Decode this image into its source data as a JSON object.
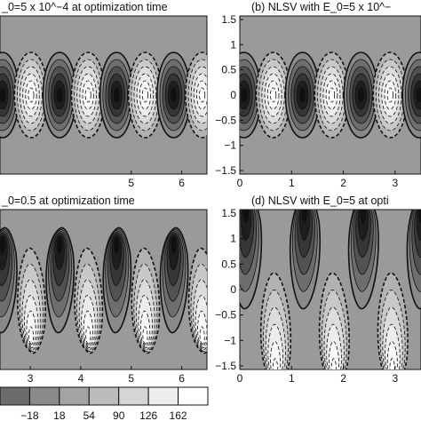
{
  "chart_data": [
    {
      "type": "heatmap",
      "panel": "a",
      "title": "_0=5 x 10^−4 at optimization time",
      "x_ticks": [
        "5",
        "6"
      ],
      "x_tick_values": [
        5,
        6
      ],
      "y_ticks": [],
      "xlim": [
        2.4,
        6.5
      ],
      "ylim": [
        -1.57,
        1.57
      ],
      "pattern": "sinusoidal wave cells along y=0, alternating dark and light lobes"
    },
    {
      "type": "heatmap",
      "panel": "b",
      "title": "(b) NLSV with E_0=5 x 10^−",
      "x_ticks": [
        "0",
        "1",
        "2",
        "3"
      ],
      "x_tick_values": [
        0,
        1,
        2,
        3
      ],
      "y_ticks": [
        "1.5",
        "1",
        "0.5",
        "0",
        "−0.5",
        "−1",
        "−1.5"
      ],
      "y_tick_values": [
        1.5,
        1,
        0.5,
        0,
        -0.5,
        -1,
        -1.5
      ],
      "xlim": [
        0,
        3.5
      ],
      "ylim": [
        -1.57,
        1.57
      ],
      "pattern": "sinusoidal wave cells along y=0"
    },
    {
      "type": "heatmap",
      "panel": "c",
      "title": "_0=0.5 at optimization time",
      "x_ticks": [
        "3",
        "4",
        "5",
        "6"
      ],
      "x_tick_values": [
        3,
        4,
        5,
        6
      ],
      "y_ticks": [],
      "xlim": [
        2.4,
        6.5
      ],
      "ylim": [
        -1.57,
        1.57
      ],
      "pattern": "tilted tear-drop wave cells"
    },
    {
      "type": "heatmap",
      "panel": "d",
      "title": "(d) NLSV with E_0=5 at opti",
      "x_ticks": [
        "0",
        "1",
        "2",
        "3"
      ],
      "x_tick_values": [
        0,
        1,
        2,
        3
      ],
      "y_ticks": [
        "1.5",
        "1",
        "0.5",
        "0",
        "−0.5",
        "−1",
        "−1.5"
      ],
      "y_tick_values": [
        1.5,
        1,
        0.5,
        0,
        -0.5,
        -1,
        -1.5
      ],
      "xlim": [
        0,
        3.5
      ],
      "ylim": [
        -1.57,
        1.57
      ],
      "pattern": "strongly nonlinear hooked cells"
    }
  ],
  "colorbar": {
    "labels": [
      "−18",
      "18",
      "54",
      "90",
      "126",
      "162"
    ],
    "values": [
      -18,
      18,
      54,
      90,
      126,
      162
    ],
    "bins": [
      {
        "color": "#6b6b6b"
      },
      {
        "color": "#8a8a8a"
      },
      {
        "color": "#a3a3a3"
      },
      {
        "color": "#bcbcbc"
      },
      {
        "color": "#d5d5d5"
      },
      {
        "color": "#ededed"
      },
      {
        "color": "#ffffff"
      }
    ]
  },
  "colors": {
    "background_field": "#9a9a9a",
    "darkest": "#141414",
    "lightest": "#ffffff",
    "line": "#111111"
  }
}
